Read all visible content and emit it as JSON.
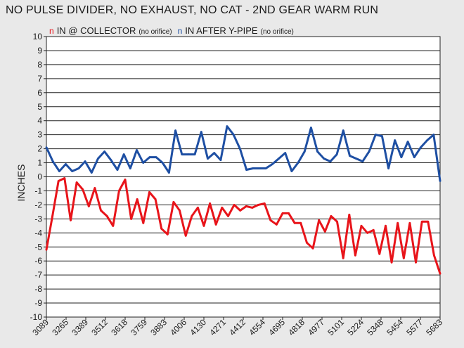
{
  "title": "NO PULSE DIVIDER, NO EXHAUST, NO CAT - 2ND GEAR WARM RUN",
  "legend": [
    {
      "marker": "n",
      "name": "IN @ COLLECTOR",
      "note": "(no orifice)",
      "color": "#e8141a"
    },
    {
      "marker": "n",
      "name": "IN AFTER Y-PIPE",
      "note": "(no orifice)",
      "color": "#1e4fa3"
    }
  ],
  "chart_data": {
    "type": "line",
    "title": "NO PULSE DIVIDER, NO EXHAUST, NO CAT - 2ND GEAR WARM RUN",
    "xlabel": "",
    "ylabel": "INCHES",
    "ylim": [
      -10,
      10
    ],
    "yticks": [
      10,
      9,
      8,
      7,
      6,
      5,
      4,
      3,
      2,
      1,
      0,
      -1,
      -2,
      -3,
      -4,
      -5,
      -6,
      -7,
      -8,
      -9,
      -10
    ],
    "x_tick_labels": [
      "3089",
      "3265",
      "3389",
      "3512",
      "3618",
      "3759",
      "3883",
      "4006",
      "4130",
      "4271",
      "4412",
      "4554",
      "4695",
      "4818",
      "4977",
      "5101",
      "5224",
      "5348",
      "5454",
      "5577",
      "5683"
    ],
    "grid": "horizontal",
    "legend_position": "top",
    "series": [
      {
        "name": "IN @ COLLECTOR",
        "color": "#e8141a",
        "values": [
          -5.2,
          -2.8,
          -0.3,
          -0.1,
          -3.1,
          -0.4,
          -0.9,
          -2.1,
          -0.8,
          -2.4,
          -2.8,
          -3.5,
          -1.0,
          -0.2,
          -3.0,
          -1.6,
          -3.3,
          -1.1,
          -1.6,
          -3.7,
          -4.1,
          -1.8,
          -2.4,
          -4.2,
          -2.8,
          -2.2,
          -3.5,
          -1.9,
          -3.4,
          -2.2,
          -2.8,
          -2.0,
          -2.4,
          -2.1,
          -2.2,
          -2.0,
          -1.9,
          -3.1,
          -3.4,
          -2.6,
          -2.6,
          -3.3,
          -3.3,
          -4.7,
          -5.1,
          -3.1,
          -3.9,
          -2.8,
          -3.2,
          -5.8,
          -2.7,
          -5.6,
          -3.5,
          -4.0,
          -3.8,
          -5.5,
          -3.5,
          -6.1,
          -3.3,
          -5.8,
          -3.3,
          -6.1,
          -3.2,
          -3.2,
          -5.6,
          -6.9
        ]
      },
      {
        "name": "IN AFTER Y-PIPE",
        "color": "#1e4fa3",
        "values": [
          2.1,
          1.1,
          0.4,
          0.9,
          0.4,
          0.6,
          1.1,
          0.3,
          1.3,
          1.8,
          1.2,
          0.5,
          1.6,
          0.6,
          1.9,
          1.0,
          1.4,
          1.4,
          1.0,
          0.3,
          3.3,
          1.6,
          1.6,
          1.6,
          3.2,
          1.3,
          1.7,
          1.2,
          3.6,
          3.0,
          2.0,
          0.5,
          0.6,
          0.6,
          0.6,
          0.9,
          1.3,
          1.7,
          0.4,
          1.0,
          1.8,
          3.5,
          1.8,
          1.3,
          1.1,
          1.6,
          3.3,
          1.5,
          1.3,
          1.1,
          1.8,
          3.0,
          2.9,
          0.6,
          2.6,
          1.4,
          2.5,
          1.4,
          2.1,
          2.6,
          3.0,
          -0.3
        ]
      }
    ]
  }
}
